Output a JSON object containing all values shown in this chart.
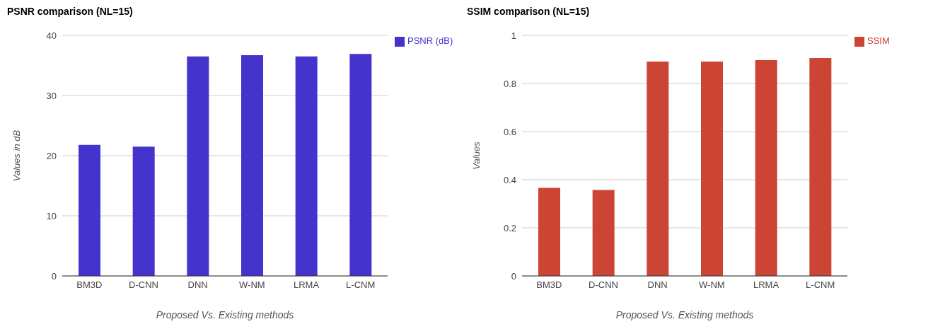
{
  "chart_data": [
    {
      "type": "bar",
      "title": "PSNR comparison (NL=15)",
      "xlabel": "Proposed Vs. Existing methods",
      "ylabel": "Values in dB",
      "categories": [
        "BM3D",
        "D-CNN",
        "DNN",
        "W-NM",
        "LRMA",
        "L-CNM"
      ],
      "series": [
        {
          "name": "PSNR (dB)",
          "color": "#4433cc",
          "values": [
            21.8,
            21.5,
            36.5,
            36.7,
            36.5,
            36.9
          ]
        }
      ],
      "ylim": [
        0,
        40
      ],
      "yticks": [
        0,
        10,
        20,
        30,
        40
      ],
      "grid": "y",
      "legend": "top right"
    },
    {
      "type": "bar",
      "title": "SSIM comparison (NL=15)",
      "xlabel": "Proposed Vs. Existing methods",
      "ylabel": "Values",
      "categories": [
        "BM3D",
        "D-CNN",
        "DNN",
        "W-NM",
        "LRMA",
        "L-CNM"
      ],
      "series": [
        {
          "name": "SSIM",
          "color": "#cc4433",
          "values": [
            0.366,
            0.357,
            0.891,
            0.891,
            0.897,
            0.906
          ]
        }
      ],
      "ylim": [
        0,
        1
      ],
      "yticks": [
        0,
        0.2,
        0.4,
        0.6,
        0.8,
        1
      ],
      "grid": "y",
      "legend": "top right"
    }
  ]
}
